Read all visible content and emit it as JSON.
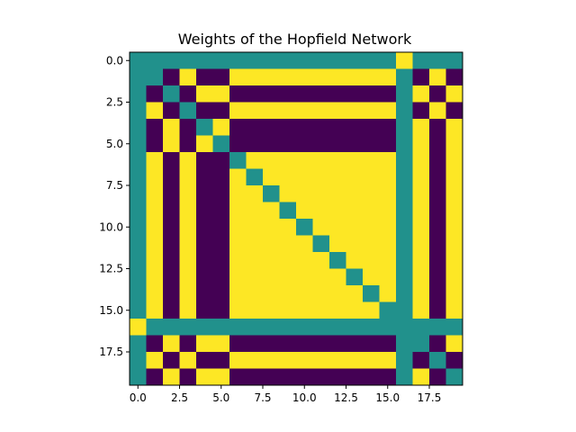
{
  "chart_data": {
    "type": "heatmap",
    "title": "Weights of the Hopfield Network",
    "xlabel": "",
    "ylabel": "",
    "rows": 20,
    "cols": 20,
    "xlim": [
      -0.5,
      19.5
    ],
    "ylim": [
      -0.5,
      19.5
    ],
    "y_inverted": true,
    "x_ticks": [
      0.0,
      2.5,
      5.0,
      7.5,
      10.0,
      12.5,
      15.0,
      17.5
    ],
    "x_tick_labels": [
      "0.0",
      "2.5",
      "5.0",
      "7.5",
      "10.0",
      "12.5",
      "15.0",
      "17.5"
    ],
    "y_ticks": [
      0.0,
      2.5,
      5.0,
      7.5,
      10.0,
      12.5,
      15.0,
      17.5
    ],
    "y_tick_labels": [
      "0.0",
      "2.5",
      "5.0",
      "7.5",
      "10.0",
      "12.5",
      "15.0",
      "17.5"
    ],
    "colormap": {
      "-1": "#440154",
      "0": "#21918c",
      "1": "#fde725"
    },
    "grid": false,
    "matrix": [
      [
        0,
        0,
        0,
        0,
        0,
        0,
        0,
        0,
        0,
        0,
        0,
        0,
        0,
        0,
        0,
        0,
        1,
        0,
        0,
        0
      ],
      [
        0,
        0,
        -1,
        1,
        -1,
        -1,
        1,
        1,
        1,
        1,
        1,
        1,
        1,
        1,
        1,
        1,
        0,
        -1,
        1,
        -1
      ],
      [
        0,
        -1,
        0,
        -1,
        1,
        1,
        -1,
        -1,
        -1,
        -1,
        -1,
        -1,
        -1,
        -1,
        -1,
        -1,
        0,
        1,
        -1,
        1
      ],
      [
        0,
        1,
        -1,
        0,
        -1,
        -1,
        1,
        1,
        1,
        1,
        1,
        1,
        1,
        1,
        1,
        1,
        0,
        -1,
        1,
        -1
      ],
      [
        0,
        -1,
        1,
        -1,
        0,
        1,
        -1,
        -1,
        -1,
        -1,
        -1,
        -1,
        -1,
        -1,
        -1,
        -1,
        0,
        1,
        -1,
        1
      ],
      [
        0,
        -1,
        1,
        -1,
        1,
        0,
        -1,
        -1,
        -1,
        -1,
        -1,
        -1,
        -1,
        -1,
        -1,
        -1,
        0,
        1,
        -1,
        1
      ],
      [
        0,
        1,
        -1,
        1,
        -1,
        -1,
        0,
        1,
        1,
        1,
        1,
        1,
        1,
        1,
        1,
        1,
        0,
        1,
        -1,
        1
      ],
      [
        0,
        1,
        -1,
        1,
        -1,
        -1,
        1,
        0,
        1,
        1,
        1,
        1,
        1,
        1,
        1,
        1,
        0,
        1,
        -1,
        1
      ],
      [
        0,
        1,
        -1,
        1,
        -1,
        -1,
        1,
        1,
        0,
        1,
        1,
        1,
        1,
        1,
        1,
        1,
        0,
        1,
        -1,
        1
      ],
      [
        0,
        1,
        -1,
        1,
        -1,
        -1,
        1,
        1,
        1,
        0,
        1,
        1,
        1,
        1,
        1,
        1,
        0,
        1,
        -1,
        1
      ],
      [
        0,
        1,
        -1,
        1,
        -1,
        -1,
        1,
        1,
        1,
        1,
        0,
        1,
        1,
        1,
        1,
        1,
        0,
        1,
        -1,
        1
      ],
      [
        0,
        1,
        -1,
        1,
        -1,
        -1,
        1,
        1,
        1,
        1,
        1,
        0,
        1,
        1,
        1,
        1,
        0,
        1,
        -1,
        1
      ],
      [
        0,
        1,
        -1,
        1,
        -1,
        -1,
        1,
        1,
        1,
        1,
        1,
        1,
        0,
        1,
        1,
        1,
        0,
        1,
        -1,
        1
      ],
      [
        0,
        1,
        -1,
        1,
        -1,
        -1,
        1,
        1,
        1,
        1,
        1,
        1,
        1,
        0,
        1,
        1,
        0,
        1,
        -1,
        1
      ],
      [
        0,
        1,
        -1,
        1,
        -1,
        -1,
        1,
        1,
        1,
        1,
        1,
        1,
        1,
        1,
        0,
        1,
        0,
        1,
        -1,
        1
      ],
      [
        0,
        1,
        -1,
        1,
        -1,
        -1,
        1,
        1,
        1,
        1,
        1,
        1,
        1,
        1,
        1,
        0,
        0,
        1,
        -1,
        1
      ],
      [
        1,
        0,
        0,
        0,
        0,
        0,
        0,
        0,
        0,
        0,
        0,
        0,
        0,
        0,
        0,
        0,
        0,
        0,
        0,
        0
      ],
      [
        0,
        -1,
        1,
        -1,
        1,
        1,
        -1,
        -1,
        -1,
        -1,
        -1,
        -1,
        -1,
        -1,
        -1,
        -1,
        0,
        0,
        -1,
        1
      ],
      [
        0,
        1,
        -1,
        1,
        -1,
        -1,
        1,
        1,
        1,
        1,
        1,
        1,
        1,
        1,
        1,
        1,
        0,
        -1,
        0,
        -1
      ],
      [
        0,
        -1,
        1,
        -1,
        1,
        1,
        -1,
        -1,
        -1,
        -1,
        -1,
        -1,
        -1,
        -1,
        -1,
        -1,
        0,
        1,
        -1,
        0
      ]
    ]
  }
}
